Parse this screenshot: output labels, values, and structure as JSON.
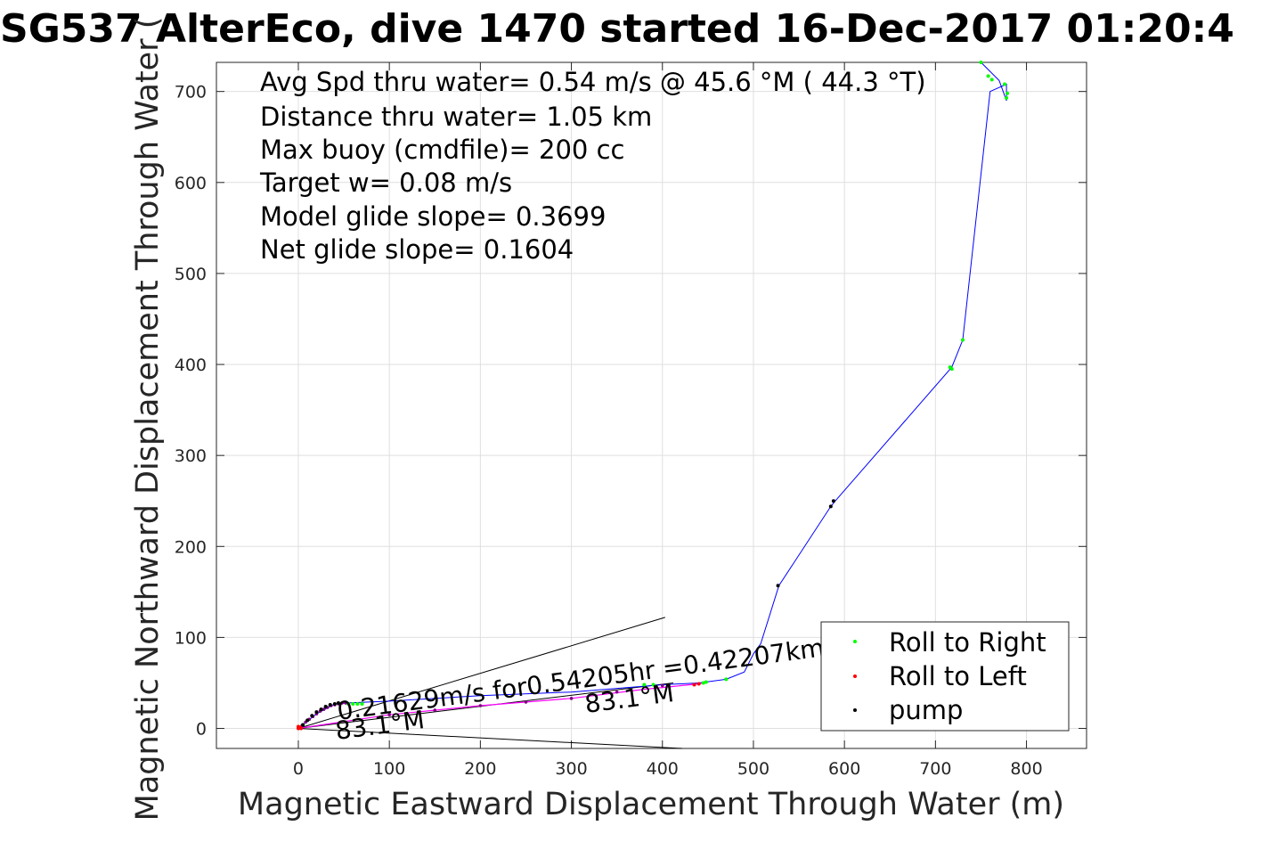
{
  "chart_data": {
    "type": "line",
    "title": "SG537 AlterEco, dive 1470 started 16-Dec-2017 01:20:4",
    "xlabel": "Magnetic Eastward Displacement Through Water (m)",
    "ylabel": "Magnetic Northward Displacement Through Water (",
    "xlim": [
      -90,
      866
    ],
    "ylim": [
      -22,
      732
    ],
    "xticks": [
      0,
      100,
      200,
      300,
      400,
      500,
      600,
      700,
      800
    ],
    "yticks": [
      0,
      100,
      200,
      300,
      400,
      500,
      600,
      700
    ],
    "grid": true,
    "annotations": [
      "Avg Spd thru water=  0.54 m/s @  45.6 °M ( 44.3 °T)",
      "Distance thru water=  1.05 km",
      "Max buoy (cmdfile)= 200 cc",
      "Target w= 0.08 m/s",
      "Model glide slope= 0.3699",
      "Net glide slope= 0.1604"
    ],
    "vector_labels": {
      "current": "0.21629m/s for0.54205hr =0.42207km",
      "heading_lower": "83.1°M",
      "heading_upper": "83.1°M"
    },
    "reference_lines": [
      {
        "x": [
          0,
          403
        ],
        "y": [
          0,
          122
        ]
      },
      {
        "x": [
          0,
          422
        ],
        "y": [
          0,
          -22
        ]
      },
      {
        "x": [
          0,
          412
        ],
        "y": [
          0,
          50
        ]
      }
    ],
    "series": [
      {
        "color": "#0000ff",
        "x": [
          0,
          20,
          40,
          55,
          100,
          200,
          300,
          350,
          400,
          440,
          470,
          490,
          500,
          508,
          528,
          585,
          590,
          718,
          730,
          760,
          778,
          778,
          770,
          750
        ],
        "y": [
          0,
          16,
          27,
          28,
          30,
          36,
          40,
          44,
          48,
          50,
          54,
          62,
          82,
          93,
          157,
          244,
          250,
          397,
          427,
          700,
          708,
          690,
          712,
          732
        ]
      },
      {
        "name": "Roll to Right",
        "color": "#00ff00",
        "x": [
          55,
          60,
          65,
          70,
          380,
          390,
          445,
          448,
          470,
          718,
          716,
          730,
          750,
          758,
          762,
          776,
          778,
          779
        ],
        "y": [
          27,
          27,
          27,
          27,
          48,
          48,
          50,
          51,
          54,
          395,
          397,
          427,
          732,
          717,
          713,
          708,
          693,
          698
        ]
      },
      {
        "name": "Roll to Left",
        "color": "#ff0000",
        "x": [
          0,
          2,
          0,
          3,
          435,
          440
        ],
        "y": [
          0,
          1,
          2,
          0,
          48,
          49
        ]
      },
      {
        "name": "pump",
        "color": "#000000",
        "x": [
          5,
          10,
          15,
          20,
          25,
          30,
          35,
          40,
          44,
          527,
          585,
          588
        ],
        "y": [
          4,
          9,
          14,
          18,
          21,
          24,
          26,
          27,
          28,
          157,
          244,
          250
        ]
      },
      {
        "color": "#ff00ff",
        "x": [
          0,
          100,
          200,
          300,
          380,
          410,
          440,
          445
        ],
        "y": [
          0,
          15,
          25,
          33,
          43,
          46,
          49,
          50
        ]
      },
      {
        "color": "#800080",
        "x": [
          0,
          4,
          8,
          12,
          16,
          20,
          24,
          28,
          32,
          36,
          40,
          44,
          48,
          52,
          100,
          150,
          200,
          250,
          300,
          350,
          400
        ],
        "y": [
          0,
          3,
          7,
          10,
          13,
          16,
          19,
          21,
          23,
          25,
          26,
          27,
          28,
          28,
          15,
          20,
          25,
          29,
          33,
          40,
          47
        ]
      }
    ],
    "legend": {
      "placement": "bottom-right",
      "entries": [
        {
          "label": "Roll to Right",
          "color": "#00ff00"
        },
        {
          "label": "Roll to Left",
          "color": "#ff0000"
        },
        {
          "label": "pump",
          "color": "#000000"
        }
      ]
    }
  }
}
